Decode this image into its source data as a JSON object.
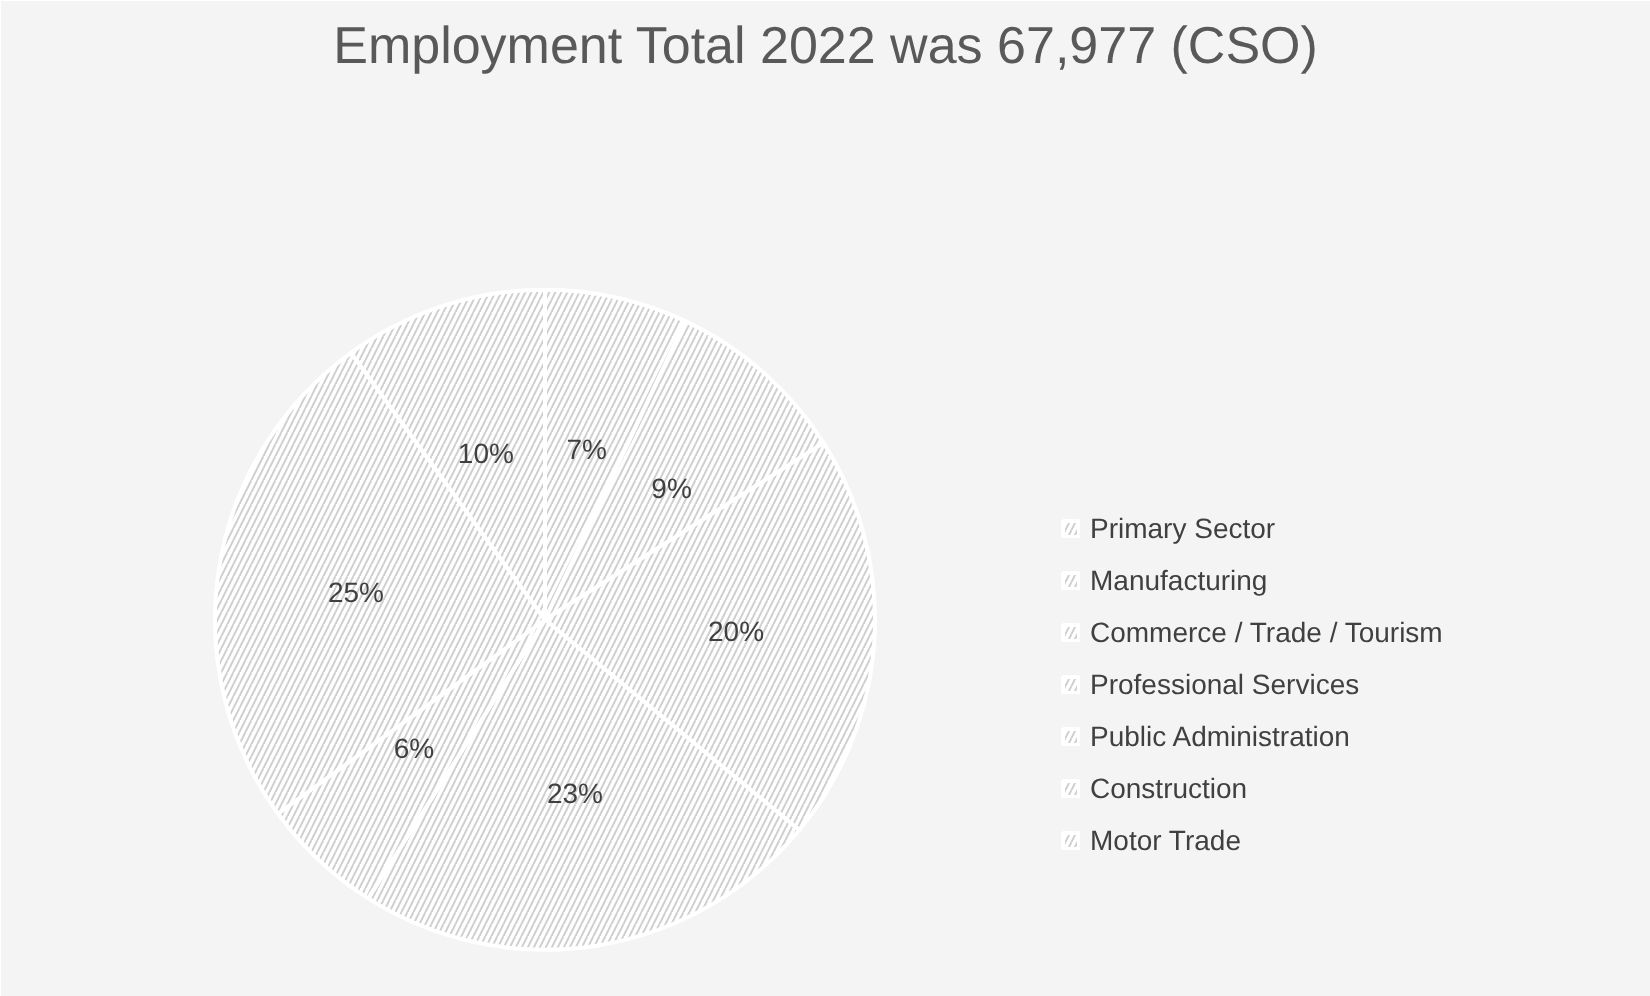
{
  "chart_data": {
    "type": "pie",
    "title": "Employment Total 2022 was 67,977 (CSO)",
    "categories": [
      "Primary Sector",
      "Manufacturing",
      "Commerce / Trade / Tourism",
      "Professional Services",
      "Public Administration",
      "Construction",
      "Motor Trade"
    ],
    "values": [
      7,
      9,
      20,
      23,
      6,
      25,
      10
    ],
    "value_labels": [
      "7%",
      "9%",
      "20%",
      "23%",
      "6%",
      "25%",
      "10%"
    ],
    "colors": [
      "#ffffff",
      "#ffffff",
      "#ffffff",
      "#ffffff",
      "#ffffff",
      "#ffffff",
      "#ffffff"
    ],
    "legend": "right"
  }
}
